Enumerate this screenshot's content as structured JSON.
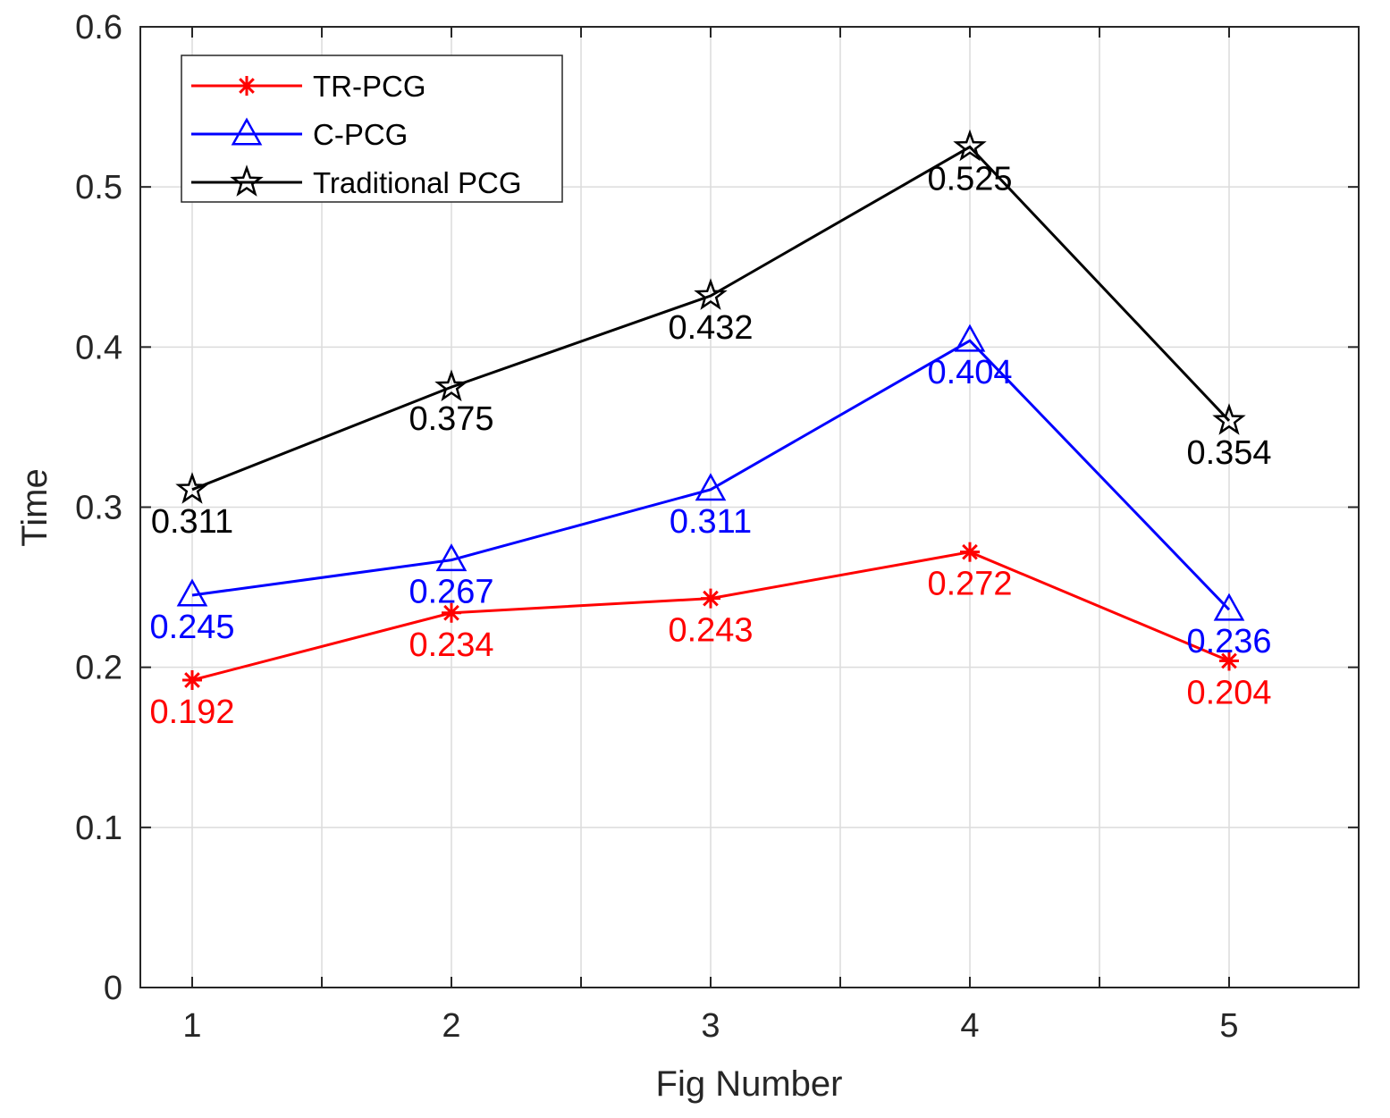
{
  "chart_data": {
    "type": "line",
    "title": "",
    "xlabel": "Fig Number",
    "ylabel": "Time",
    "x": [
      1,
      2,
      3,
      4,
      5
    ],
    "xlim": [
      0.8,
      5.5
    ],
    "ylim": [
      0,
      0.6
    ],
    "xticks": [
      1,
      1.5,
      2,
      2.5,
      3,
      3.5,
      4,
      4.5,
      5
    ],
    "xtick_labels": [
      "1",
      "",
      "2",
      "",
      "3",
      "",
      "4",
      "",
      "5"
    ],
    "yticks": [
      0,
      0.1,
      0.2,
      0.3,
      0.4,
      0.5,
      0.6
    ],
    "ytick_labels": [
      "0",
      "0.1",
      "0.2",
      "0.3",
      "0.4",
      "0.5",
      "0.6"
    ],
    "grid": true,
    "legend_position": "top-left",
    "series": [
      {
        "name": "TR-PCG",
        "color": "#ff0000",
        "marker": "asterisk",
        "values": [
          0.192,
          0.234,
          0.243,
          0.272,
          0.204
        ],
        "labels": [
          "0.192",
          "0.234",
          "0.243",
          "0.272",
          "0.204"
        ]
      },
      {
        "name": "C-PCG",
        "color": "#0000ff",
        "marker": "triangle",
        "values": [
          0.245,
          0.267,
          0.311,
          0.404,
          0.236
        ],
        "labels": [
          "0.245",
          "0.267",
          "0.311",
          "0.404",
          "0.236"
        ]
      },
      {
        "name": "Traditional PCG",
        "color": "#000000",
        "marker": "star",
        "values": [
          0.311,
          0.375,
          0.432,
          0.525,
          0.354
        ],
        "labels": [
          "0.311",
          "0.375",
          "0.432",
          "0.525",
          "0.354"
        ]
      }
    ]
  }
}
